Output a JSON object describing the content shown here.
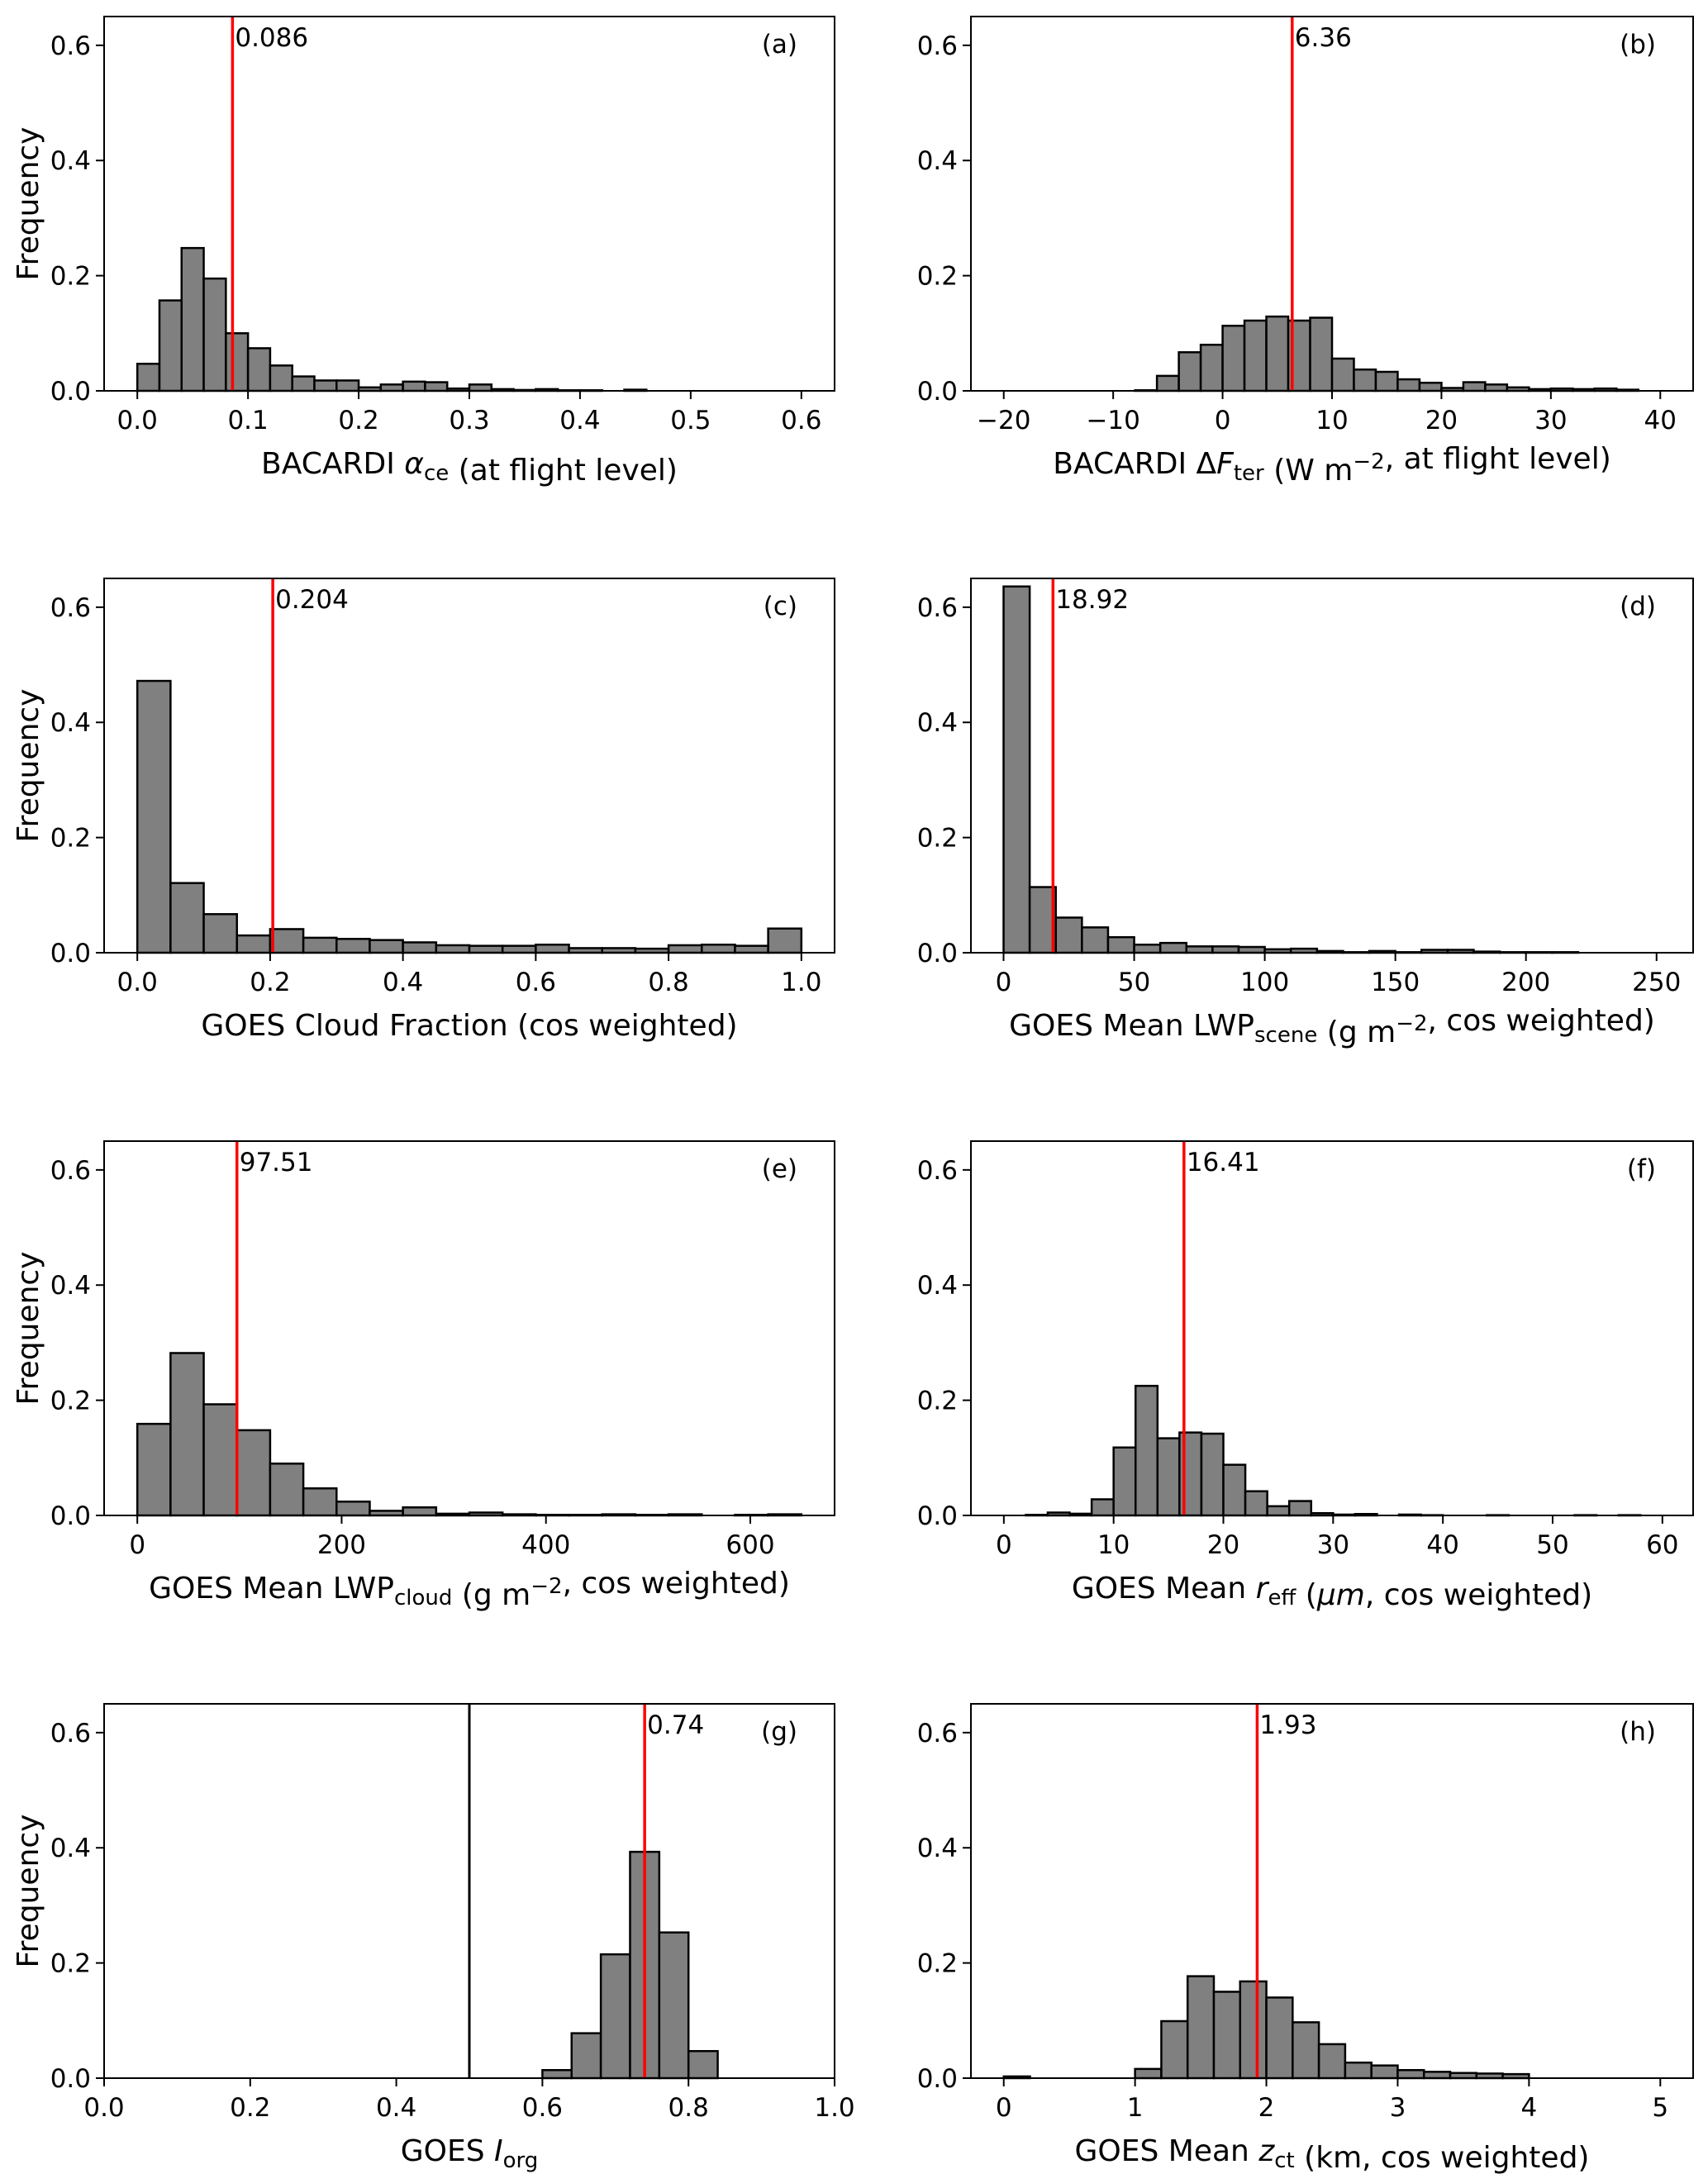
{
  "style": {
    "bar_fill": "#808080",
    "bar_edge": "#000000",
    "mean_line": "#ff0000",
    "ref_line": "#000000"
  },
  "ylabel": "Frequency",
  "chart_data": [
    {
      "type": "bar",
      "panel": "(a)",
      "xlabel": [
        {
          "t": "BACARDI "
        },
        {
          "t": "α",
          "i": 1
        },
        {
          "t": "ce",
          "sub": 1
        },
        {
          "t": " (at flight level)"
        }
      ],
      "xlim": [
        -0.03,
        0.63
      ],
      "ylim": [
        0,
        0.65
      ],
      "xticks": [
        0.0,
        0.1,
        0.2,
        0.3,
        0.4,
        0.5,
        0.6
      ],
      "xtick_labels": [
        "0.0",
        "0.1",
        "0.2",
        "0.3",
        "0.4",
        "0.5",
        "0.6"
      ],
      "yticks": [
        0.0,
        0.2,
        0.4,
        0.6
      ],
      "ytick_labels": [
        "0.0",
        "0.2",
        "0.4",
        "0.6"
      ],
      "bin_start": 0,
      "bin_width": 0.02,
      "values": [
        0.047,
        0.157,
        0.248,
        0.195,
        0.1,
        0.074,
        0.044,
        0.025,
        0.018,
        0.018,
        0.006,
        0.011,
        0.016,
        0.015,
        0.004,
        0.011,
        0.003,
        0.0015,
        0.003,
        0.001,
        0.001,
        0,
        0.002
      ],
      "mean": 0.086,
      "mean_label": "0.086"
    },
    {
      "type": "bar",
      "panel": "(b)",
      "xlabel": [
        {
          "t": "BACARDI Δ"
        },
        {
          "t": "F",
          "i": 1
        },
        {
          "t": "ter",
          "sub": 1
        },
        {
          "t": " (W m"
        },
        {
          "t": "−2",
          "sup": 1
        },
        {
          "t": ", at flight level)"
        }
      ],
      "xlim": [
        -23,
        43
      ],
      "ylim": [
        0,
        0.65
      ],
      "xticks": [
        -20,
        -10,
        0,
        10,
        20,
        30,
        40
      ],
      "xtick_labels": [
        "−20",
        "−10",
        "0",
        "10",
        "20",
        "30",
        "40"
      ],
      "yticks": [
        0.0,
        0.2,
        0.4,
        0.6
      ],
      "ytick_labels": [
        "0.0",
        "0.2",
        "0.4",
        "0.6"
      ],
      "bin_start": -8,
      "bin_width": 2,
      "values": [
        0.001,
        0.026,
        0.067,
        0.08,
        0.113,
        0.122,
        0.129,
        0.122,
        0.127,
        0.056,
        0.037,
        0.033,
        0.02,
        0.014,
        0.005,
        0.015,
        0.011,
        0.006,
        0.003,
        0.004,
        0.003,
        0.004,
        0.002
      ],
      "mean": 6.36,
      "mean_label": "6.36"
    },
    {
      "type": "bar",
      "panel": "(c)",
      "xlabel": [
        {
          "t": "GOES Cloud Fraction (cos weighted)"
        }
      ],
      "xlim": [
        -0.05,
        1.05
      ],
      "ylim": [
        0,
        0.65
      ],
      "xticks": [
        0.0,
        0.2,
        0.4,
        0.6,
        0.8,
        1.0
      ],
      "xtick_labels": [
        "0.0",
        "0.2",
        "0.4",
        "0.6",
        "0.8",
        "1.0"
      ],
      "yticks": [
        0.0,
        0.2,
        0.4,
        0.6
      ],
      "ytick_labels": [
        "0.0",
        "0.2",
        "0.4",
        "0.6"
      ],
      "bin_start": 0,
      "bin_width": 0.05,
      "values": [
        0.472,
        0.121,
        0.067,
        0.03,
        0.041,
        0.026,
        0.024,
        0.022,
        0.018,
        0.013,
        0.012,
        0.012,
        0.014,
        0.008,
        0.008,
        0.007,
        0.013,
        0.014,
        0.012,
        0.042
      ],
      "mean": 0.204,
      "mean_label": "0.204"
    },
    {
      "type": "bar",
      "panel": "(d)",
      "xlabel": [
        {
          "t": "GOES Mean LWP"
        },
        {
          "t": "scene",
          "sub": 1
        },
        {
          "t": " (g m"
        },
        {
          "t": "−2",
          "sup": 1
        },
        {
          "t": ", cos weighted)"
        }
      ],
      "xlim": [
        -12.5,
        264
      ],
      "ylim": [
        0,
        0.65
      ],
      "xticks": [
        0,
        50,
        100,
        150,
        200,
        250
      ],
      "xtick_labels": [
        "0",
        "50",
        "100",
        "150",
        "200",
        "250"
      ],
      "yticks": [
        0.0,
        0.2,
        0.4,
        0.6
      ],
      "ytick_labels": [
        "0.0",
        "0.2",
        "0.4",
        "0.6"
      ],
      "bin_start": 0,
      "bin_width": 10,
      "values": [
        0.636,
        0.114,
        0.061,
        0.044,
        0.027,
        0.014,
        0.017,
        0.011,
        0.011,
        0.01,
        0.006,
        0.007,
        0.003,
        0.001,
        0.003,
        0.001,
        0.005,
        0.005,
        0.002,
        0.001,
        0.001,
        0.001
      ],
      "mean": 18.92,
      "mean_label": "18.92"
    },
    {
      "type": "bar",
      "panel": "(e)",
      "xlabel": [
        {
          "t": "GOES Mean LWP"
        },
        {
          "t": "cloud",
          "sub": 1
        },
        {
          "t": " (g m"
        },
        {
          "t": "−2",
          "sup": 1
        },
        {
          "t": ", cos weighted)"
        }
      ],
      "xlim": [
        -32.5,
        682.5
      ],
      "ylim": [
        0,
        0.65
      ],
      "xticks": [
        0,
        200,
        400,
        600
      ],
      "xtick_labels": [
        "0",
        "200",
        "400",
        "600"
      ],
      "yticks": [
        0.0,
        0.2,
        0.4,
        0.6
      ],
      "ytick_labels": [
        "0.0",
        "0.2",
        "0.4",
        "0.6"
      ],
      "bin_start": 0,
      "bin_width": 32.5,
      "values": [
        0.159,
        0.282,
        0.193,
        0.148,
        0.09,
        0.047,
        0.024,
        0.008,
        0.014,
        0.003,
        0.005,
        0.002,
        0.001,
        0.001,
        0.002,
        0.001,
        0.002,
        0,
        0.001,
        0.002
      ],
      "mean": 97.51,
      "mean_label": "97.51"
    },
    {
      "type": "bar",
      "panel": "(f)",
      "xlabel": [
        {
          "t": "GOES Mean "
        },
        {
          "t": "r",
          "i": 1
        },
        {
          "t": "eff",
          "sub": 1
        },
        {
          "t": " ("
        },
        {
          "t": "μm",
          "i": 1
        },
        {
          "t": ", cos weighted)"
        }
      ],
      "xlim": [
        -3,
        62.8
      ],
      "ylim": [
        0,
        0.65
      ],
      "xticks": [
        0,
        10,
        20,
        30,
        40,
        50,
        60
      ],
      "xtick_labels": [
        "0",
        "10",
        "20",
        "30",
        "40",
        "50",
        "60"
      ],
      "yticks": [
        0.0,
        0.2,
        0.4,
        0.6
      ],
      "ytick_labels": [
        "0.0",
        "0.2",
        "0.4",
        "0.6"
      ],
      "bin_start": 2,
      "bin_width": 2,
      "values": [
        0.001,
        0.005,
        0.003,
        0.028,
        0.118,
        0.225,
        0.134,
        0.144,
        0.142,
        0.088,
        0.042,
        0.016,
        0.025,
        0.004,
        0.0015,
        0.0025,
        0,
        0.0015,
        0.0005,
        0,
        0,
        0.0005,
        0,
        0,
        0,
        0.0005,
        0,
        0.0005,
        0
      ],
      "mean": 16.41,
      "mean_label": "16.41"
    },
    {
      "type": "bar",
      "panel": "(g)",
      "xlabel": [
        {
          "t": "GOES "
        },
        {
          "t": "I",
          "i": 1
        },
        {
          "t": "org",
          "sub": 1
        }
      ],
      "xlim": [
        0,
        1
      ],
      "ylim": [
        0,
        0.65
      ],
      "xticks": [
        0.0,
        0.2,
        0.4,
        0.6,
        0.8,
        1.0
      ],
      "xtick_labels": [
        "0.0",
        "0.2",
        "0.4",
        "0.6",
        "0.8",
        "1.0"
      ],
      "yticks": [
        0.0,
        0.2,
        0.4,
        0.6
      ],
      "ytick_labels": [
        "0.0",
        "0.2",
        "0.4",
        "0.6"
      ],
      "bin_start": 0.6,
      "bin_width": 0.04,
      "values": [
        0.014,
        0.078,
        0.215,
        0.393,
        0.253,
        0.047
      ],
      "mean": 0.74,
      "mean_label": "0.74",
      "reference_line": 0.5
    },
    {
      "type": "bar",
      "panel": "(h)",
      "xlabel": [
        {
          "t": "GOES Mean "
        },
        {
          "t": "z",
          "i": 1
        },
        {
          "t": "ct",
          "sub": 1
        },
        {
          "t": " (km, cos weighted)"
        }
      ],
      "xlim": [
        -0.25,
        5.25
      ],
      "ylim": [
        0,
        0.65
      ],
      "xticks": [
        0,
        1,
        2,
        3,
        4,
        5
      ],
      "xtick_labels": [
        "0",
        "1",
        "2",
        "3",
        "4",
        "5"
      ],
      "yticks": [
        0.0,
        0.2,
        0.4,
        0.6
      ],
      "ytick_labels": [
        "0.0",
        "0.2",
        "0.4",
        "0.6"
      ],
      "bin_start": 0,
      "bin_width": 0.2,
      "values": [
        0.003,
        0,
        0,
        0,
        0,
        0.016,
        0.099,
        0.177,
        0.15,
        0.168,
        0.14,
        0.097,
        0.059,
        0.027,
        0.022,
        0.014,
        0.011,
        0.009,
        0.008,
        0.007
      ],
      "mean": 1.93,
      "mean_label": "1.93"
    }
  ]
}
